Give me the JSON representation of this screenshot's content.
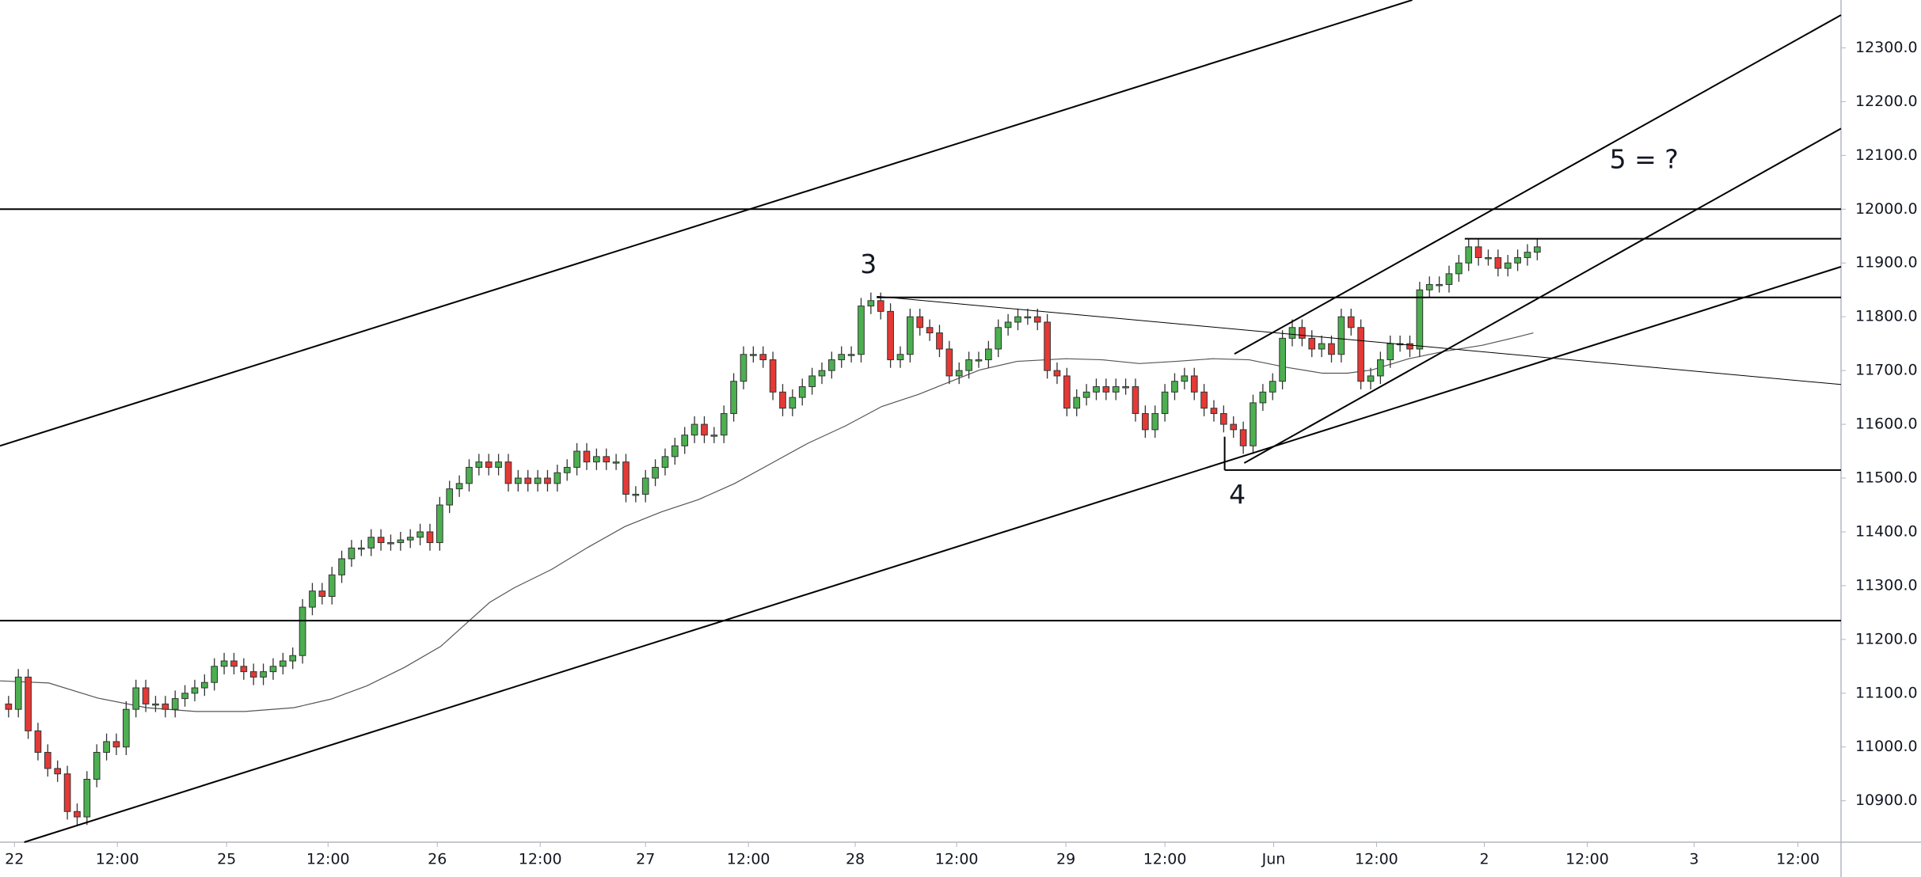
{
  "chart_data": {
    "type": "candlestick",
    "xlim": [
      -0.875,
      187
    ],
    "ylim": [
      10823,
      12389
    ],
    "xticks": [
      {
        "value": 0.6,
        "label": "22"
      },
      {
        "value": 11.1,
        "label": "12:00"
      },
      {
        "value": 22.25,
        "label": "25"
      },
      {
        "value": 32.6,
        "label": "12:00"
      },
      {
        "value": 43.75,
        "label": "26"
      },
      {
        "value": 54.25,
        "label": "12:00"
      },
      {
        "value": 65,
        "label": "27"
      },
      {
        "value": 75.5,
        "label": "12:00"
      },
      {
        "value": 86.4,
        "label": "28"
      },
      {
        "value": 96.75,
        "label": "12:00"
      },
      {
        "value": 107.9,
        "label": "29"
      },
      {
        "value": 118,
        "label": "12:00"
      },
      {
        "value": 129.1,
        "label": "Jun"
      },
      {
        "value": 139.6,
        "label": "12:00"
      },
      {
        "value": 150.6,
        "label": "2"
      },
      {
        "value": 161.1,
        "label": "12:00"
      },
      {
        "value": 172,
        "label": "3"
      },
      {
        "value": 182.6,
        "label": "12:00"
      }
    ],
    "yticks": [
      {
        "value": 10900,
        "label": "10900.0"
      },
      {
        "value": 11000,
        "label": "11000.0"
      },
      {
        "value": 11100,
        "label": "11100.0"
      },
      {
        "value": 11200,
        "label": "11200.0"
      },
      {
        "value": 11300,
        "label": "11300.0"
      },
      {
        "value": 11400,
        "label": "11400.0"
      },
      {
        "value": 11500,
        "label": "11500.0"
      },
      {
        "value": 11600,
        "label": "11600.0"
      },
      {
        "value": 11700,
        "label": "11700.0"
      },
      {
        "value": 11800,
        "label": "11800.0"
      },
      {
        "value": 11900,
        "label": "11900.0"
      },
      {
        "value": 12000,
        "label": "12000.0"
      },
      {
        "value": 12100,
        "label": "12100.0"
      },
      {
        "value": 12200,
        "label": "12200.0"
      },
      {
        "value": 12300,
        "label": "12300.0"
      }
    ],
    "up_color": "#4caf50",
    "down_color": "#e53935",
    "candles": [
      [
        11080,
        11095,
        11055,
        11070
      ],
      [
        11070,
        11145,
        11055,
        11130
      ],
      [
        11130,
        11145,
        11015,
        11030
      ],
      [
        11030,
        11045,
        10975,
        10990
      ],
      [
        10990,
        11005,
        10945,
        10960
      ],
      [
        10960,
        10975,
        10935,
        10950
      ],
      [
        10950,
        10965,
        10865,
        10880
      ],
      [
        10880,
        10895,
        10855,
        10870
      ],
      [
        10870,
        10955,
        10855,
        10940
      ],
      [
        10940,
        11005,
        10925,
        10990
      ],
      [
        10990,
        11025,
        10975,
        11010
      ],
      [
        11010,
        11025,
        10985,
        11000
      ],
      [
        11000,
        11085,
        10985,
        11070
      ],
      [
        11070,
        11125,
        11055,
        11110
      ],
      [
        11110,
        11125,
        11065,
        11080
      ],
      [
        11080,
        11095,
        11065,
        11080
      ],
      [
        11080,
        11095,
        11055,
        11070
      ],
      [
        11070,
        11105,
        11055,
        11090
      ],
      [
        11090,
        11115,
        11075,
        11100
      ],
      [
        11100,
        11125,
        11085,
        11110
      ],
      [
        11110,
        11135,
        11095,
        11120
      ],
      [
        11120,
        11165,
        11105,
        11150
      ],
      [
        11150,
        11175,
        11135,
        11160
      ],
      [
        11160,
        11175,
        11135,
        11150
      ],
      [
        11150,
        11165,
        11125,
        11140
      ],
      [
        11140,
        11155,
        11115,
        11130
      ],
      [
        11130,
        11155,
        11115,
        11140
      ],
      [
        11140,
        11165,
        11125,
        11150
      ],
      [
        11150,
        11175,
        11135,
        11160
      ],
      [
        11160,
        11185,
        11145,
        11170
      ],
      [
        11170,
        11275,
        11155,
        11260
      ],
      [
        11260,
        11305,
        11245,
        11290
      ],
      [
        11290,
        11305,
        11265,
        11280
      ],
      [
        11280,
        11335,
        11265,
        11320
      ],
      [
        11320,
        11365,
        11305,
        11350
      ],
      [
        11350,
        11385,
        11335,
        11370
      ],
      [
        11370,
        11385,
        11355,
        11370
      ],
      [
        11370,
        11405,
        11355,
        11390
      ],
      [
        11390,
        11405,
        11365,
        11380
      ],
      [
        11380,
        11395,
        11365,
        11380
      ],
      [
        11380,
        11400,
        11365,
        11385
      ],
      [
        11385,
        11405,
        11370,
        11390
      ],
      [
        11390,
        11415,
        11375,
        11400
      ],
      [
        11400,
        11415,
        11365,
        11380
      ],
      [
        11380,
        11465,
        11365,
        11450
      ],
      [
        11450,
        11495,
        11435,
        11480
      ],
      [
        11480,
        11505,
        11465,
        11490
      ],
      [
        11490,
        11535,
        11475,
        11520
      ],
      [
        11520,
        11545,
        11505,
        11530
      ],
      [
        11530,
        11545,
        11505,
        11520
      ],
      [
        11520,
        11545,
        11505,
        11530
      ],
      [
        11530,
        11545,
        11475,
        11490
      ],
      [
        11490,
        11515,
        11475,
        11500
      ],
      [
        11500,
        11515,
        11475,
        11490
      ],
      [
        11490,
        11515,
        11475,
        11500
      ],
      [
        11500,
        11515,
        11475,
        11490
      ],
      [
        11490,
        11525,
        11475,
        11510
      ],
      [
        11510,
        11535,
        11495,
        11520
      ],
      [
        11520,
        11565,
        11505,
        11550
      ],
      [
        11550,
        11565,
        11515,
        11530
      ],
      [
        11530,
        11555,
        11515,
        11540
      ],
      [
        11540,
        11555,
        11515,
        11530
      ],
      [
        11530,
        11545,
        11515,
        11530
      ],
      [
        11530,
        11545,
        11455,
        11470
      ],
      [
        11470,
        11485,
        11455,
        11470
      ],
      [
        11470,
        11515,
        11455,
        11500
      ],
      [
        11500,
        11535,
        11485,
        11520
      ],
      [
        11520,
        11555,
        11505,
        11540
      ],
      [
        11540,
        11575,
        11525,
        11560
      ],
      [
        11560,
        11595,
        11545,
        11580
      ],
      [
        11580,
        11615,
        11565,
        11600
      ],
      [
        11600,
        11615,
        11565,
        11580
      ],
      [
        11580,
        11595,
        11565,
        11580
      ],
      [
        11580,
        11635,
        11565,
        11620
      ],
      [
        11620,
        11695,
        11605,
        11680
      ],
      [
        11680,
        11745,
        11665,
        11730
      ],
      [
        11730,
        11745,
        11715,
        11730
      ],
      [
        11730,
        11745,
        11705,
        11720
      ],
      [
        11720,
        11735,
        11645,
        11660
      ],
      [
        11660,
        11675,
        11615,
        11630
      ],
      [
        11630,
        11665,
        11615,
        11650
      ],
      [
        11650,
        11685,
        11635,
        11670
      ],
      [
        11670,
        11705,
        11655,
        11690
      ],
      [
        11690,
        11715,
        11675,
        11700
      ],
      [
        11700,
        11735,
        11685,
        11720
      ],
      [
        11720,
        11745,
        11705,
        11730
      ],
      [
        11730,
        11745,
        11715,
        11730
      ],
      [
        11730,
        11835,
        11715,
        11820
      ],
      [
        11820,
        11845,
        11805,
        11830
      ],
      [
        11830,
        11845,
        11795,
        11810
      ],
      [
        11810,
        11825,
        11705,
        11720
      ],
      [
        11720,
        11745,
        11705,
        11730
      ],
      [
        11730,
        11815,
        11715,
        11800
      ],
      [
        11800,
        11815,
        11765,
        11780
      ],
      [
        11780,
        11795,
        11755,
        11770
      ],
      [
        11770,
        11785,
        11725,
        11740
      ],
      [
        11740,
        11755,
        11675,
        11690
      ],
      [
        11690,
        11715,
        11675,
        11700
      ],
      [
        11700,
        11735,
        11685,
        11720
      ],
      [
        11720,
        11735,
        11705,
        11720
      ],
      [
        11720,
        11755,
        11705,
        11740
      ],
      [
        11740,
        11795,
        11725,
        11780
      ],
      [
        11780,
        11805,
        11765,
        11790
      ],
      [
        11790,
        11815,
        11775,
        11800
      ],
      [
        11800,
        11815,
        11785,
        11800
      ],
      [
        11800,
        11815,
        11775,
        11790
      ],
      [
        11790,
        11805,
        11685,
        11700
      ],
      [
        11700,
        11715,
        11675,
        11690
      ],
      [
        11690,
        11705,
        11615,
        11630
      ],
      [
        11630,
        11665,
        11615,
        11650
      ],
      [
        11650,
        11675,
        11635,
        11660
      ],
      [
        11660,
        11685,
        11645,
        11670
      ],
      [
        11670,
        11685,
        11645,
        11660
      ],
      [
        11660,
        11685,
        11645,
        11670
      ],
      [
        11670,
        11685,
        11655,
        11670
      ],
      [
        11670,
        11685,
        11605,
        11620
      ],
      [
        11620,
        11635,
        11575,
        11590
      ],
      [
        11590,
        11635,
        11575,
        11620
      ],
      [
        11620,
        11675,
        11605,
        11660
      ],
      [
        11660,
        11695,
        11645,
        11680
      ],
      [
        11680,
        11705,
        11665,
        11690
      ],
      [
        11690,
        11705,
        11645,
        11660
      ],
      [
        11660,
        11675,
        11615,
        11630
      ],
      [
        11630,
        11645,
        11605,
        11620
      ],
      [
        11620,
        11635,
        11585,
        11600
      ],
      [
        11600,
        11615,
        11575,
        11590
      ],
      [
        11590,
        11605,
        11545,
        11560
      ],
      [
        11560,
        11655,
        11545,
        11640
      ],
      [
        11640,
        11675,
        11625,
        11660
      ],
      [
        11660,
        11695,
        11645,
        11680
      ],
      [
        11680,
        11775,
        11665,
        11760
      ],
      [
        11760,
        11795,
        11745,
        11780
      ],
      [
        11780,
        11795,
        11745,
        11760
      ],
      [
        11760,
        11775,
        11725,
        11740
      ],
      [
        11740,
        11765,
        11725,
        11750
      ],
      [
        11750,
        11765,
        11715,
        11730
      ],
      [
        11730,
        11815,
        11715,
        11800
      ],
      [
        11800,
        11815,
        11765,
        11780
      ],
      [
        11780,
        11795,
        11665,
        11680
      ],
      [
        11680,
        11705,
        11665,
        11690
      ],
      [
        11690,
        11735,
        11675,
        11720
      ],
      [
        11720,
        11765,
        11705,
        11750
      ],
      [
        11750,
        11765,
        11735,
        11750
      ],
      [
        11750,
        11765,
        11725,
        11740
      ],
      [
        11740,
        11865,
        11725,
        11850
      ],
      [
        11850,
        11875,
        11835,
        11860
      ],
      [
        11860,
        11875,
        11845,
        11860
      ],
      [
        11860,
        11895,
        11845,
        11880
      ],
      [
        11880,
        11915,
        11865,
        11900
      ],
      [
        11900,
        11945,
        11885,
        11930
      ],
      [
        11930,
        11945,
        11895,
        11910
      ],
      [
        11910,
        11925,
        11895,
        11910
      ],
      [
        11910,
        11925,
        11875,
        11890
      ],
      [
        11890,
        11915,
        11875,
        11900
      ],
      [
        11900,
        11925,
        11885,
        11910
      ],
      [
        11910,
        11935,
        11895,
        11920
      ],
      [
        11920,
        11945,
        11905,
        11930
      ]
    ],
    "moving_average": {
      "color": "#555555",
      "x": [
        -0.9,
        4.1,
        9.1,
        14.1,
        19.1,
        24.1,
        29.1,
        32.9,
        36.6,
        40.4,
        44.1,
        46.6,
        49.1,
        51.6,
        55.4,
        59.1,
        62.9,
        66.6,
        70.4,
        74.1,
        77.9,
        81.6,
        85.4,
        89.1,
        92.9,
        96.6,
        99.1,
        102.9,
        107.9,
        111.6,
        115.4,
        119.1,
        122.9,
        126.6,
        130.4,
        134.1,
        136.6,
        139.1,
        142.9,
        146.6,
        150.4,
        154.1,
        155.6
      ],
      "values": [
        11123,
        11119,
        11091,
        11073,
        11066,
        11066,
        11073,
        11089,
        11114,
        11148,
        11187,
        11228,
        11269,
        11296,
        11330,
        11371,
        11410,
        11437,
        11460,
        11490,
        11528,
        11565,
        11597,
        11633,
        11656,
        11683,
        11701,
        11717,
        11722,
        11720,
        11713,
        11717,
        11722,
        11720,
        11706,
        11695,
        11695,
        11701,
        11722,
        11736,
        11747,
        11763,
        11770
      ]
    },
    "hlines": [
      {
        "value": 12000
      },
      {
        "value": 11235
      },
      {
        "value": 11945,
        "from": 148.6
      },
      {
        "value": 11836,
        "from": 88.6
      },
      {
        "value": 11515,
        "from": 124.1
      }
    ],
    "trendlines": [
      {
        "x": [
          -0.875,
          143.25
        ],
        "y": [
          11560,
          12389
        ]
      },
      {
        "x": [
          1.6,
          187
        ],
        "y": [
          10823,
          11893
        ]
      },
      {
        "x": [
          125.1,
          187
        ],
        "y": [
          11731,
          12361
        ]
      },
      {
        "x": [
          126.1,
          187
        ],
        "y": [
          11528,
          12150
        ]
      },
      {
        "x": [
          88.6,
          187
        ],
        "y": [
          11838,
          11674
        ]
      },
      {
        "x": [
          124.1,
          124.1
        ],
        "y": [
          11577,
          11515
        ]
      }
    ],
    "annotations": [
      {
        "text": "3",
        "x": 87.75,
        "y": 11895
      },
      {
        "text": "4",
        "x": 125.4,
        "y": 11467
      },
      {
        "text": "5 = ?",
        "x": 166.9,
        "y": 12090
      }
    ]
  }
}
